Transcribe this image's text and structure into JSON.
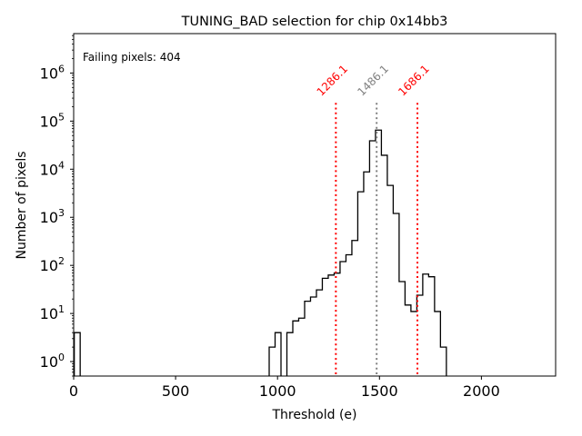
{
  "chart_data": {
    "type": "bar",
    "histogram": true,
    "title": "TUNING_BAD selection for chip 0x14bb3",
    "xlabel": "Threshold (e)",
    "ylabel": "Number of pixels",
    "yscale": "log",
    "xlim": [
      0,
      2364
    ],
    "ylim": [
      0.5,
      6600000
    ],
    "grid": false,
    "xticks": [
      0,
      500,
      1000,
      1500,
      2000
    ],
    "xtick_labels": [
      "0",
      "500",
      "1000",
      "1500",
      "2000"
    ],
    "yticks": [
      1,
      10,
      100,
      1000,
      10000,
      100000,
      1000000
    ],
    "ytick_labels": [
      {
        "base": "10",
        "exp": "0"
      },
      {
        "base": "10",
        "exp": "1"
      },
      {
        "base": "10",
        "exp": "2"
      },
      {
        "base": "10",
        "exp": "3"
      },
      {
        "base": "10",
        "exp": "4"
      },
      {
        "base": "10",
        "exp": "5"
      },
      {
        "base": "10",
        "exp": "6"
      }
    ],
    "bin_start": 3,
    "bin_width": 28.97,
    "bins": [
      {
        "index": 0,
        "count": 4
      },
      {
        "index": 33,
        "count": 2
      },
      {
        "index": 34,
        "count": 4
      },
      {
        "index": 36,
        "count": 4
      },
      {
        "index": 37,
        "count": 7
      },
      {
        "index": 38,
        "count": 8
      },
      {
        "index": 39,
        "count": 18
      },
      {
        "index": 40,
        "count": 22
      },
      {
        "index": 41,
        "count": 31
      },
      {
        "index": 42,
        "count": 54
      },
      {
        "index": 43,
        "count": 63
      },
      {
        "index": 44,
        "count": 69
      },
      {
        "index": 45,
        "count": 120
      },
      {
        "index": 46,
        "count": 166
      },
      {
        "index": 47,
        "count": 330
      },
      {
        "index": 48,
        "count": 3400
      },
      {
        "index": 49,
        "count": 8800
      },
      {
        "index": 50,
        "count": 39000
      },
      {
        "index": 51,
        "count": 65000
      },
      {
        "index": 52,
        "count": 19500
      },
      {
        "index": 53,
        "count": 4600
      },
      {
        "index": 54,
        "count": 1200
      },
      {
        "index": 55,
        "count": 46
      },
      {
        "index": 56,
        "count": 15
      },
      {
        "index": 57,
        "count": 11
      },
      {
        "index": 58,
        "count": 24
      },
      {
        "index": 59,
        "count": 66
      },
      {
        "index": 60,
        "count": 58
      },
      {
        "index": 61,
        "count": 11
      },
      {
        "index": 62,
        "count": 2
      }
    ],
    "vlines": [
      {
        "x": 1286.1,
        "label": "1286.1",
        "color": "#ff0000",
        "style": "dotted",
        "top": 240000
      },
      {
        "x": 1486.1,
        "label": "1486.1",
        "color": "#808080",
        "style": "dotted",
        "top": 240000
      },
      {
        "x": 1686.1,
        "label": "1686.1",
        "color": "#ff0000",
        "style": "dotted",
        "top": 240000
      }
    ],
    "annotations": [
      {
        "text": "Failing pixels: 404",
        "color": "#ff0000",
        "position": "top-left"
      }
    ]
  }
}
